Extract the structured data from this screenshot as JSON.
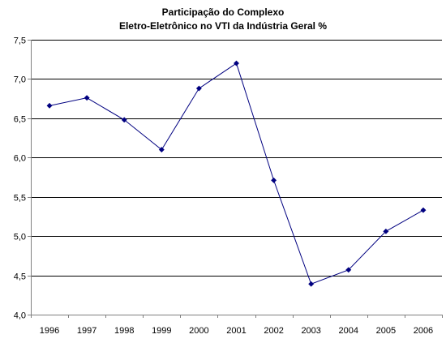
{
  "chart_data": {
    "type": "line",
    "title_lines": [
      "Participação do Complexo",
      "Eletro-Eletrônico no VTI da Indústria Geral %"
    ],
    "categories": [
      "1996",
      "1997",
      "1998",
      "1999",
      "2000",
      "2001",
      "2002",
      "2003",
      "2004",
      "2005",
      "2006"
    ],
    "series": [
      {
        "values": [
          6.66,
          6.76,
          6.48,
          6.1,
          6.88,
          7.2,
          5.71,
          4.39,
          4.57,
          5.06,
          5.33
        ]
      }
    ],
    "yticks": [
      "4,0",
      "4,5",
      "5,0",
      "5,5",
      "6,0",
      "6,5",
      "7,0",
      "7,5"
    ],
    "ylim": [
      4.0,
      7.5
    ],
    "ystep": 0.5,
    "grid": "horizontal",
    "legend": "none",
    "colors": {
      "line": "#000080",
      "marker": "#000080",
      "grid": "#000000",
      "axis": "#808080"
    }
  }
}
